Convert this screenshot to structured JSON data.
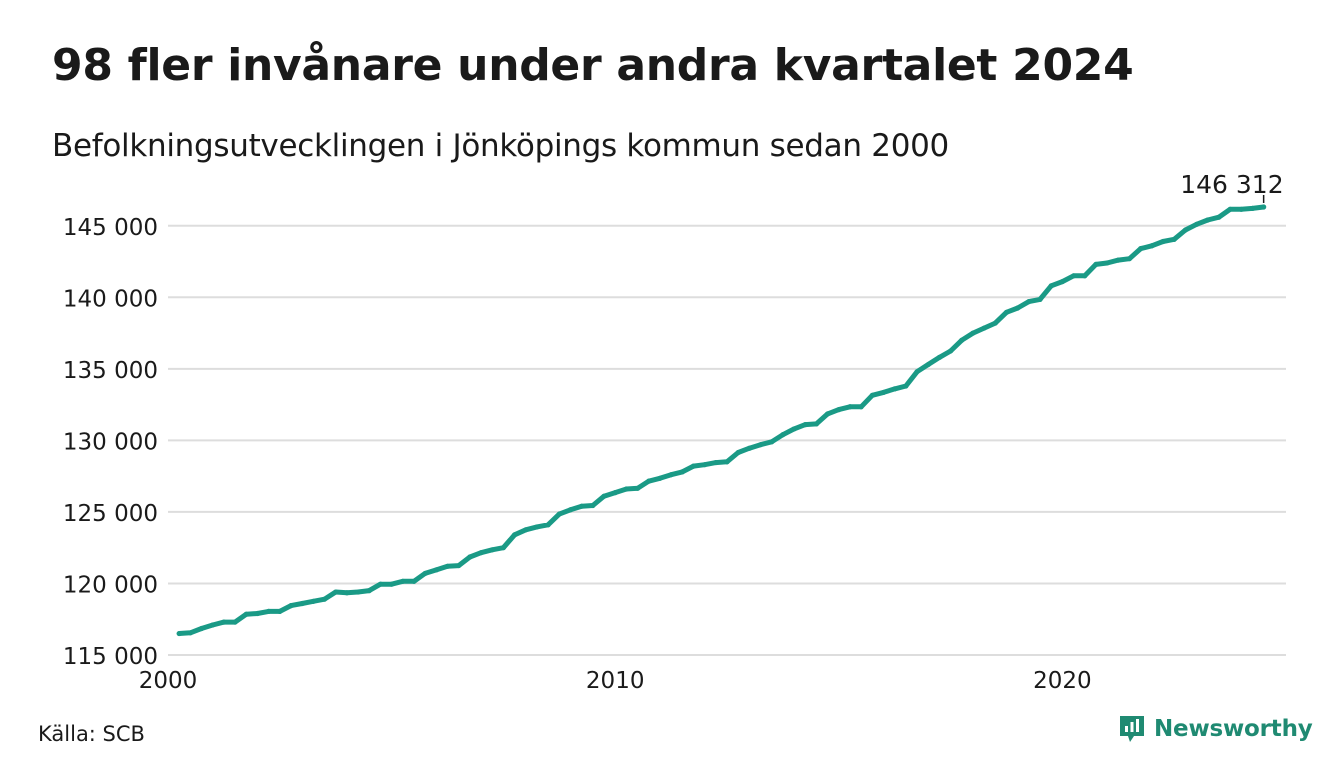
{
  "header": {
    "title": "98 fler invånare under andra kvartalet 2024",
    "subtitle": "Befolkningsutvecklingen i Jönköpings kommun sedan 2000"
  },
  "footer": {
    "source": "Källa: SCB",
    "brand": "Newsworthy",
    "brand_icon": "newsworthy-logo-icon"
  },
  "colors": {
    "line": "#1a9a86",
    "grid": "#dddddd",
    "text": "#1a1a1a",
    "brand": "#1f8a72"
  },
  "chart_data": {
    "type": "line",
    "title": "98 fler invånare under andra kvartalet 2024",
    "subtitle": "Befolkningsutvecklingen i Jönköpings kommun sedan 2000",
    "xlabel": "",
    "ylabel": "",
    "ylim": [
      115000,
      146800
    ],
    "xlim": [
      2000.0,
      2025.0
    ],
    "yticks": [
      115000,
      120000,
      125000,
      130000,
      135000,
      140000,
      145000
    ],
    "ytick_labels": [
      "115 000",
      "120 000",
      "125 000",
      "130 000",
      "135 000",
      "140 000",
      "145 000"
    ],
    "xticks": [
      2000,
      2010,
      2020
    ],
    "xtick_labels": [
      "2000",
      "2010",
      "2020"
    ],
    "grid": true,
    "legend": "none",
    "series": [
      {
        "x": [
          2000.25,
          2000.5,
          2000.75,
          2001.0,
          2001.25,
          2001.5,
          2001.75,
          2002.0,
          2002.25,
          2002.5,
          2002.75,
          2003.0,
          2003.25,
          2003.5,
          2003.75,
          2004.0,
          2004.25,
          2004.5,
          2004.75,
          2005.0,
          2005.25,
          2005.5,
          2005.75,
          2006.0,
          2006.25,
          2006.5,
          2006.75,
          2007.0,
          2007.25,
          2007.5,
          2007.75,
          2008.0,
          2008.25,
          2008.5,
          2008.75,
          2009.0,
          2009.25,
          2009.5,
          2009.75,
          2010.0,
          2010.25,
          2010.5,
          2010.75,
          2011.0,
          2011.25,
          2011.5,
          2011.75,
          2012.0,
          2012.25,
          2012.5,
          2012.75,
          2013.0,
          2013.25,
          2013.5,
          2013.75,
          2014.0,
          2014.25,
          2014.5,
          2014.75,
          2015.0,
          2015.25,
          2015.5,
          2015.75,
          2016.0,
          2016.25,
          2016.5,
          2016.75,
          2017.0,
          2017.25,
          2017.5,
          2017.75,
          2018.0,
          2018.25,
          2018.5,
          2018.75,
          2019.0,
          2019.25,
          2019.5,
          2019.75,
          2020.0,
          2020.25,
          2020.5,
          2020.75,
          2021.0,
          2021.25,
          2021.5,
          2021.75,
          2022.0,
          2022.25,
          2022.5,
          2022.75,
          2023.0,
          2023.25,
          2023.5,
          2023.75,
          2024.0,
          2024.25,
          2024.5
        ],
        "values": [
          116500,
          116550,
          116850,
          117100,
          117300,
          117300,
          117850,
          117900,
          118050,
          118050,
          118450,
          118600,
          118750,
          118900,
          119400,
          119350,
          119400,
          119500,
          119950,
          119950,
          120150,
          120150,
          120700,
          120950,
          121200,
          121250,
          121850,
          122150,
          122350,
          122500,
          123400,
          123750,
          123950,
          124100,
          124850,
          125150,
          125400,
          125450,
          126100,
          126350,
          126600,
          126650,
          127150,
          127350,
          127600,
          127800,
          128200,
          128300,
          128450,
          128500,
          129150,
          129450,
          129700,
          129900,
          130400,
          130800,
          131100,
          131150,
          131850,
          132150,
          132350,
          132350,
          133150,
          133350,
          133600,
          133800,
          134800,
          135300,
          135800,
          136250,
          137000,
          137500,
          137850,
          138200,
          138950,
          139250,
          139700,
          139850,
          140800,
          141100,
          141500,
          141500,
          142300,
          142400,
          142600,
          142700,
          143400,
          143600,
          143900,
          144050,
          144700,
          145100,
          145400,
          145600,
          146150,
          146150,
          146214,
          146312
        ]
      }
    ],
    "annotations": [
      {
        "label": "146 312",
        "x": 2024.5,
        "y": 146312
      }
    ]
  }
}
